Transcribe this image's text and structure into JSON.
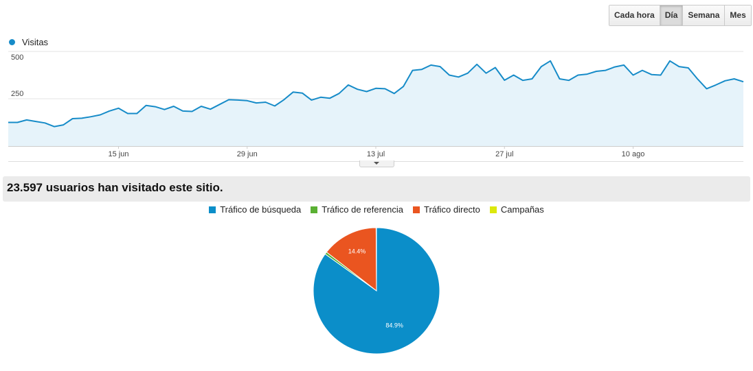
{
  "granularity": {
    "buttons": [
      {
        "label": "Cada hora",
        "active": false
      },
      {
        "label": "Día",
        "active": true
      },
      {
        "label": "Semana",
        "active": false
      },
      {
        "label": "Mes",
        "active": false
      }
    ]
  },
  "colors": {
    "line": "#168bc8",
    "area": "#e6f3fa",
    "search": "#0b8ec9",
    "referral": "#5ab033",
    "direct": "#ea5520",
    "campaigns": "#dce80c"
  },
  "summary": {
    "text": "23.597 usuarios han visitado este sitio."
  },
  "chart_data": [
    {
      "type": "area",
      "series_name": "Visitas",
      "start_date": "2013-06-03",
      "x_tick_labels": [
        "15 jun",
        "29 jun",
        "13 jul",
        "27 jul",
        "10 ago"
      ],
      "x_tick_dates": [
        "2013-06-15",
        "2013-06-29",
        "2013-07-13",
        "2013-07-27",
        "2013-08-10"
      ],
      "y_ticks": [
        250,
        500
      ],
      "ylim": [
        0,
        500
      ],
      "grid": true,
      "values": [
        125,
        125,
        138,
        130,
        122,
        103,
        112,
        145,
        147,
        155,
        165,
        185,
        200,
        172,
        172,
        215,
        208,
        193,
        210,
        185,
        183,
        210,
        195,
        220,
        245,
        243,
        240,
        228,
        232,
        212,
        245,
        285,
        280,
        243,
        258,
        253,
        278,
        323,
        300,
        288,
        305,
        303,
        278,
        315,
        400,
        405,
        428,
        420,
        375,
        365,
        385,
        432,
        385,
        415,
        348,
        375,
        347,
        355,
        420,
        450,
        355,
        347,
        375,
        380,
        395,
        400,
        418,
        428,
        375,
        400,
        378,
        375,
        450,
        420,
        413,
        355,
        303,
        323,
        345,
        355,
        340
      ]
    },
    {
      "type": "pie",
      "legend": [
        "Tráfico de búsqueda",
        "Tráfico de referencia",
        "Tráfico directo",
        "Campañas"
      ],
      "values": [
        84.9,
        0.6,
        14.4,
        0.1
      ],
      "labels": [
        "84.9%",
        "",
        "14.4%",
        ""
      ],
      "legend_position": "top"
    }
  ]
}
